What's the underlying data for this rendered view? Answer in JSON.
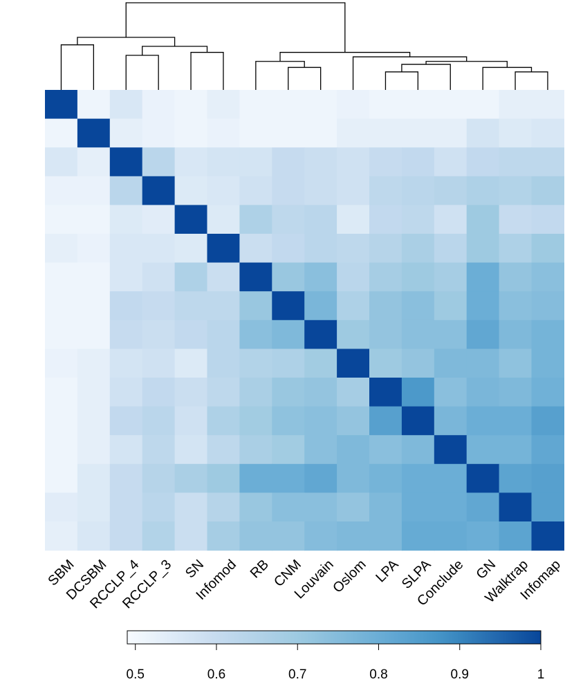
{
  "chart_data": {
    "type": "heatmap",
    "title": "",
    "xlabel": "",
    "ylabel": "",
    "labels": [
      "SBM",
      "DCSBM",
      "RCCLP_4",
      "RCCLP_3",
      "SN",
      "Infomod",
      "RB",
      "CNM",
      "Louvain",
      "Oslom",
      "LPA",
      "SLPA",
      "Conclude",
      "GN",
      "Walktrap",
      "Infomap"
    ],
    "matrix": [
      [
        1.0,
        0.51,
        0.56,
        0.52,
        0.51,
        0.53,
        0.51,
        0.51,
        0.51,
        0.52,
        0.51,
        0.51,
        0.51,
        0.51,
        0.53,
        0.53
      ],
      [
        0.51,
        1.0,
        0.53,
        0.52,
        0.51,
        0.52,
        0.51,
        0.51,
        0.51,
        0.53,
        0.53,
        0.53,
        0.53,
        0.57,
        0.55,
        0.56
      ],
      [
        0.56,
        0.53,
        1.0,
        0.63,
        0.56,
        0.57,
        0.57,
        0.6,
        0.59,
        0.58,
        0.6,
        0.61,
        0.58,
        0.61,
        0.62,
        0.62
      ],
      [
        0.52,
        0.52,
        0.63,
        1.0,
        0.55,
        0.56,
        0.58,
        0.6,
        0.59,
        0.58,
        0.62,
        0.63,
        0.64,
        0.66,
        0.65,
        0.67
      ],
      [
        0.51,
        0.51,
        0.55,
        0.54,
        1.0,
        0.55,
        0.66,
        0.62,
        0.63,
        0.55,
        0.61,
        0.62,
        0.58,
        0.7,
        0.6,
        0.61
      ],
      [
        0.53,
        0.52,
        0.56,
        0.56,
        0.55,
        1.0,
        0.59,
        0.61,
        0.63,
        0.62,
        0.64,
        0.67,
        0.63,
        0.7,
        0.66,
        0.7
      ],
      [
        0.51,
        0.51,
        0.56,
        0.58,
        0.66,
        0.59,
        1.0,
        0.71,
        0.74,
        0.63,
        0.68,
        0.7,
        0.68,
        0.8,
        0.72,
        0.74
      ],
      [
        0.51,
        0.51,
        0.61,
        0.6,
        0.62,
        0.62,
        0.71,
        1.0,
        0.77,
        0.66,
        0.72,
        0.74,
        0.7,
        0.8,
        0.74,
        0.75
      ],
      [
        0.51,
        0.51,
        0.6,
        0.59,
        0.61,
        0.63,
        0.74,
        0.76,
        1.0,
        0.7,
        0.72,
        0.74,
        0.74,
        0.82,
        0.76,
        0.78
      ],
      [
        0.52,
        0.53,
        0.57,
        0.58,
        0.55,
        0.63,
        0.65,
        0.66,
        0.69,
        1.0,
        0.7,
        0.72,
        0.76,
        0.76,
        0.73,
        0.78
      ],
      [
        0.51,
        0.53,
        0.58,
        0.61,
        0.59,
        0.62,
        0.67,
        0.71,
        0.72,
        0.68,
        1.0,
        0.86,
        0.74,
        0.77,
        0.76,
        0.79
      ],
      [
        0.51,
        0.53,
        0.61,
        0.63,
        0.58,
        0.66,
        0.69,
        0.73,
        0.74,
        0.72,
        0.84,
        1.0,
        0.77,
        0.8,
        0.8,
        0.84
      ],
      [
        0.51,
        0.53,
        0.57,
        0.62,
        0.57,
        0.62,
        0.67,
        0.69,
        0.74,
        0.76,
        0.74,
        0.76,
        1.0,
        0.78,
        0.78,
        0.82
      ],
      [
        0.51,
        0.55,
        0.6,
        0.64,
        0.67,
        0.7,
        0.8,
        0.8,
        0.82,
        0.76,
        0.78,
        0.8,
        0.8,
        1.0,
        0.83,
        0.84
      ],
      [
        0.54,
        0.55,
        0.6,
        0.63,
        0.59,
        0.64,
        0.71,
        0.74,
        0.74,
        0.72,
        0.76,
        0.8,
        0.8,
        0.82,
        1.0,
        0.84
      ],
      [
        0.53,
        0.56,
        0.6,
        0.65,
        0.59,
        0.68,
        0.72,
        0.72,
        0.75,
        0.76,
        0.76,
        0.81,
        0.81,
        0.8,
        0.83,
        1.0
      ]
    ],
    "colorbar": {
      "range": [
        0.49,
        1.0
      ],
      "ticks": [
        0.5,
        0.6,
        0.7,
        0.8,
        0.9,
        1
      ],
      "tick_labels": [
        "0.5",
        "0.6",
        "0.7",
        "0.8",
        "0.9",
        "1"
      ]
    },
    "colors": {
      "low": "#f7fbff",
      "mid1": "#c6dbef",
      "mid2": "#9ecae1",
      "mid3": "#6baed6",
      "mid4": "#4292c6",
      "high": "#08469a"
    },
    "dendrogram": {
      "merges": [
        [
          0,
          1,
          3
        ],
        [
          2,
          3,
          2
        ],
        [
          4,
          5,
          2
        ],
        [
          8,
          9,
          1
        ],
        [
          7,
          16,
          1.5
        ],
        [
          11,
          12,
          0.5
        ],
        [
          10,
          15,
          1
        ],
        [
          14,
          15,
          0.8
        ],
        [
          13,
          18,
          1.2
        ],
        [
          19,
          20,
          1.6
        ],
        [
          22,
          24,
          1.5
        ]
      ]
    }
  }
}
